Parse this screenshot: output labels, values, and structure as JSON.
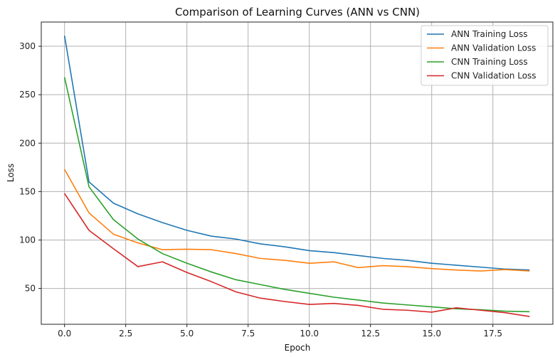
{
  "chart_data": {
    "type": "line",
    "title": "Comparison of Learning Curves (ANN vs CNN)",
    "xlabel": "Epoch",
    "ylabel": "Loss",
    "xlim": [
      -0.95,
      19.95
    ],
    "ylim": [
      13,
      325
    ],
    "xticks": [
      0.0,
      2.5,
      5.0,
      7.5,
      10.0,
      12.5,
      15.0,
      17.5
    ],
    "xtick_labels": [
      "0.0",
      "2.5",
      "5.0",
      "7.5",
      "10.0",
      "12.5",
      "15.0",
      "17.5"
    ],
    "yticks": [
      50,
      100,
      150,
      200,
      250,
      300
    ],
    "ytick_labels": [
      "50",
      "100",
      "150",
      "200",
      "250",
      "300"
    ],
    "grid": true,
    "legend_position": "top-right",
    "x": [
      0,
      1,
      2,
      3,
      4,
      5,
      6,
      7,
      8,
      9,
      10,
      11,
      12,
      13,
      14,
      15,
      16,
      17,
      18,
      19
    ],
    "series": [
      {
        "name": "ANN Training Loss",
        "color": "#1f77b4",
        "values": [
          311,
          160,
          138,
          127,
          118,
          110,
          104,
          101,
          96,
          93,
          89,
          87,
          84,
          81,
          79,
          76,
          74,
          72,
          70,
          69
        ]
      },
      {
        "name": "ANN Validation Loss",
        "color": "#ff7f0e",
        "values": [
          173,
          128,
          106,
          97,
          90,
          90.5,
          90,
          86,
          81,
          79,
          76,
          77.5,
          71.5,
          73.5,
          72.5,
          70.5,
          69,
          68,
          69.5,
          68
        ]
      },
      {
        "name": "CNN Training Loss",
        "color": "#2ca02c",
        "values": [
          268,
          155,
          121,
          101,
          86,
          76,
          67,
          59,
          54,
          49,
          45,
          41,
          38,
          35,
          33,
          31,
          29,
          28,
          26.5,
          26
        ]
      },
      {
        "name": "CNN Validation Loss",
        "color": "#d62728",
        "values": [
          148,
          110,
          91,
          72.5,
          77.5,
          66.5,
          57,
          46.5,
          40,
          36.5,
          33.5,
          34.5,
          32.5,
          28.5,
          27.5,
          25.5,
          30,
          27.5,
          25,
          21
        ]
      }
    ]
  }
}
